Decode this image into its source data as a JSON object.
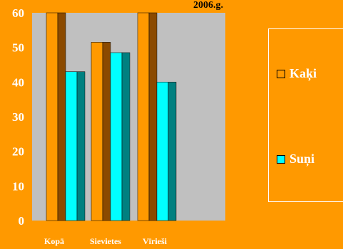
{
  "chart_data": {
    "type": "bar",
    "title": "2006.g.",
    "categories": [
      "Kopā",
      "Sievietes",
      "Vīrieši"
    ],
    "series": [
      {
        "name": "Kaķi",
        "values": [
          60,
          51.5,
          60
        ],
        "color": "#FF9900",
        "shadow": "#8B4A00"
      },
      {
        "name": "Suņi",
        "values": [
          43,
          48.5,
          40
        ],
        "color": "#00FFFF",
        "shadow": "#008080"
      }
    ],
    "ylim": [
      0,
      60
    ],
    "yticks": [
      0,
      10,
      20,
      30,
      40,
      50,
      60
    ],
    "grid": false,
    "legend_position": "right",
    "plot_background": "#C0C0C0",
    "page_background": "#FF9900"
  }
}
